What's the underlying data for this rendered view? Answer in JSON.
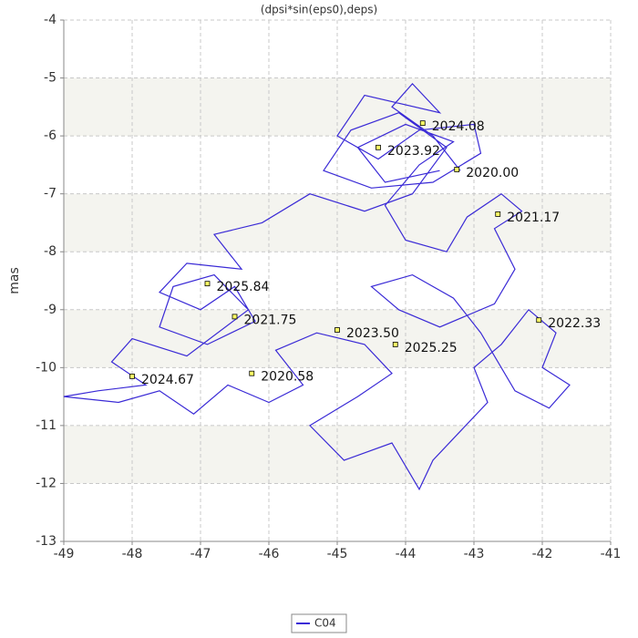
{
  "chart_data": {
    "type": "line",
    "title": "(dpsi*sin(eps0),deps)",
    "ylabel": "mas",
    "xlim": [
      -49,
      -41
    ],
    "xticks": [
      -49,
      -48,
      -47,
      -46,
      -45,
      -44,
      -43,
      -42,
      -41
    ],
    "ylim": [
      -13,
      -4
    ],
    "yticks": [
      -13,
      -12,
      -11,
      -10,
      -9,
      -8,
      -7,
      -6,
      -5,
      -4
    ],
    "grid": true,
    "series": [
      {
        "name": "C04",
        "color": "#3a2ad6",
        "x": [
          -43.2,
          -43.6,
          -44.2,
          -43.9,
          -43.5,
          -44.6,
          -45.0,
          -44.4,
          -43.8,
          -43.0,
          -42.9,
          -43.6,
          -44.5,
          -45.2,
          -44.8,
          -44.1,
          -43.4,
          -43.9,
          -44.6,
          -45.4,
          -46.1,
          -46.8,
          -46.4,
          -47.2,
          -47.6,
          -47.0,
          -46.5,
          -46.2,
          -46.9,
          -47.6,
          -47.4,
          -46.8,
          -46.3,
          -47.2,
          -48.0,
          -48.3,
          -47.8,
          -48.5,
          -49.0,
          -48.2,
          -47.6,
          -47.1,
          -46.6,
          -46.0,
          -45.5,
          -45.9,
          -45.3,
          -44.6,
          -44.2,
          -44.7,
          -45.4,
          -44.9,
          -44.2,
          -43.8,
          -43.6,
          -43.2,
          -42.8,
          -43.0,
          -42.6,
          -42.2,
          -41.8,
          -42.0,
          -41.6,
          -41.9,
          -42.4,
          -42.9,
          -43.3,
          -43.9,
          -44.5,
          -44.1,
          -43.5,
          -42.7,
          -42.4,
          -42.7,
          -42.3,
          -42.6,
          -43.1,
          -43.4,
          -44.0,
          -44.3,
          -43.8,
          -43.3,
          -44.0,
          -44.7,
          -44.3,
          -43.5
        ],
        "values": [
          -6.6,
          -6.0,
          -5.5,
          -5.1,
          -5.6,
          -5.3,
          -6.0,
          -6.4,
          -5.9,
          -5.8,
          -6.3,
          -6.8,
          -6.9,
          -6.6,
          -5.9,
          -5.6,
          -6.2,
          -7.0,
          -7.3,
          -7.0,
          -7.5,
          -7.7,
          -8.3,
          -8.2,
          -8.7,
          -9.0,
          -8.6,
          -9.2,
          -9.6,
          -9.3,
          -8.6,
          -8.4,
          -9.0,
          -9.8,
          -9.5,
          -9.9,
          -10.3,
          -10.4,
          -10.5,
          -10.6,
          -10.4,
          -10.8,
          -10.3,
          -10.6,
          -10.3,
          -9.7,
          -9.4,
          -9.6,
          -10.1,
          -10.5,
          -11.0,
          -11.6,
          -11.3,
          -12.1,
          -11.6,
          -11.1,
          -10.6,
          -10.0,
          -9.6,
          -9.0,
          -9.4,
          -10.0,
          -10.3,
          -10.7,
          -10.4,
          -9.4,
          -8.8,
          -8.4,
          -8.6,
          -9.0,
          -9.3,
          -8.9,
          -8.3,
          -7.6,
          -7.3,
          -7.0,
          -7.4,
          -8.0,
          -7.8,
          -7.2,
          -6.5,
          -6.1,
          -5.8,
          -6.2,
          -6.8,
          -6.6
        ]
      }
    ],
    "annotations": [
      {
        "x": -43.75,
        "y": -5.78,
        "label": "2024.08"
      },
      {
        "x": -44.4,
        "y": -6.2,
        "label": "2023.92"
      },
      {
        "x": -43.25,
        "y": -6.58,
        "label": "2020.00"
      },
      {
        "x": -42.65,
        "y": -7.35,
        "label": "2021.17"
      },
      {
        "x": -46.9,
        "y": -8.55,
        "label": "2025.84"
      },
      {
        "x": -46.5,
        "y": -9.12,
        "label": "2021.75"
      },
      {
        "x": -45.0,
        "y": -9.35,
        "label": "2023.50"
      },
      {
        "x": -44.15,
        "y": -9.6,
        "label": "2025.25"
      },
      {
        "x": -42.05,
        "y": -9.18,
        "label": "2022.33"
      },
      {
        "x": -48.0,
        "y": -10.15,
        "label": "2024.67"
      },
      {
        "x": -46.25,
        "y": -10.1,
        "label": "2020.58"
      }
    ]
  }
}
